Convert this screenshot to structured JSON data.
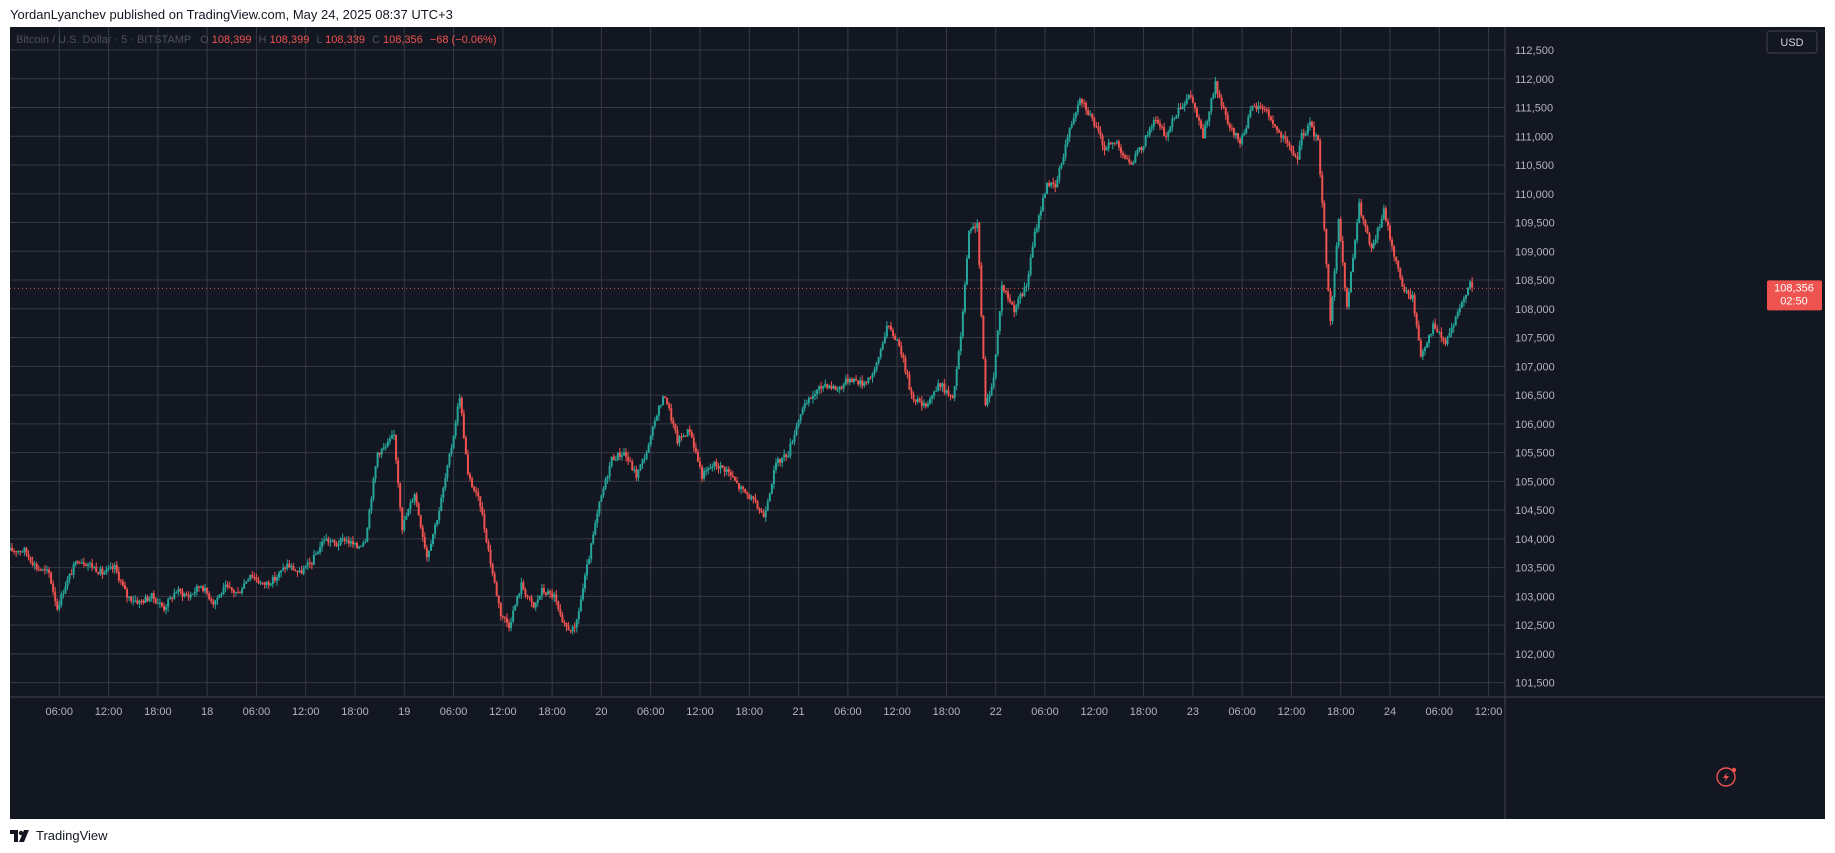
{
  "header": {
    "publisher_line": "YordanLyanchev published on TradingView.com, May 24, 2025 08:37 UTC+3"
  },
  "footer": {
    "brand": "TradingView"
  },
  "legend": {
    "symbol": "Bitcoin / U.S. Dollar · 5 · BITSTAMP",
    "o_label": "O",
    "o_value": "108,399",
    "h_label": "H",
    "h_value": "108,399",
    "l_label": "L",
    "l_value": "108,339",
    "c_label": "C",
    "c_value": "108,356",
    "change": "−68 (−0.06%)"
  },
  "price_axis": {
    "currency": "USD",
    "current_price": "108,356",
    "countdown": "02:50"
  },
  "colors": {
    "background": "#131722",
    "grid": "#363a45",
    "up": "#26a69a",
    "down": "#ef5350",
    "text": "#b2b5be"
  },
  "chart_data": {
    "type": "candlestick",
    "timeframe": "5",
    "ylim": [
      101250,
      112900
    ],
    "y_ticks": [
      101500,
      102000,
      102500,
      103000,
      103500,
      104000,
      104500,
      105000,
      105500,
      106000,
      106500,
      107000,
      107500,
      108000,
      108500,
      109000,
      109500,
      110000,
      110500,
      111000,
      111500,
      112000,
      112500
    ],
    "y_tick_labels": [
      "101,500",
      "102,000",
      "102,500",
      "103,000",
      "103,500",
      "104,000",
      "104,500",
      "105,000",
      "105,500",
      "106,000",
      "106,500",
      "107,000",
      "107,500",
      "108,000",
      "108,500",
      "109,000",
      "109,500",
      "110,000",
      "110,500",
      "111,000",
      "111,500",
      "112,000",
      "112,500"
    ],
    "x_labels": [
      "06:00",
      "12:00",
      "18:00",
      "18",
      "06:00",
      "12:00",
      "18:00",
      "19",
      "06:00",
      "12:00",
      "18:00",
      "20",
      "06:00",
      "12:00",
      "18:00",
      "21",
      "06:00",
      "12:00",
      "18:00",
      "22",
      "06:00",
      "12:00",
      "18:00",
      "23",
      "06:00",
      "12:00",
      "18:00",
      "24",
      "06:00",
      "12:00"
    ],
    "x_range_hours": [
      0,
      180
    ],
    "x_label_hours": [
      6,
      12,
      18,
      24,
      30,
      36,
      42,
      48,
      54,
      60,
      66,
      72,
      78,
      84,
      90,
      96,
      102,
      108,
      114,
      120,
      126,
      132,
      138,
      144,
      150,
      156,
      162,
      168,
      174,
      180
    ],
    "last_price": 108356,
    "price_path_hours": [
      2,
      3.5,
      5,
      6,
      7,
      8.5,
      10,
      11.5,
      13,
      14.5,
      16,
      17.5,
      19,
      20.5,
      22,
      23.5,
      25,
      26.5,
      28,
      29.5,
      31,
      32.5,
      34,
      35.5,
      37,
      38.5,
      40,
      41,
      42.5,
      43.5,
      45,
      46,
      47,
      48,
      49.5,
      51,
      52.5,
      54,
      55,
      56,
      57.5,
      59,
      60,
      61,
      62.5,
      64,
      65,
      66.5,
      67.5,
      69,
      70.5,
      72,
      73.5,
      75,
      76.5,
      78,
      79,
      80,
      81.5,
      83,
      84.5,
      86,
      87.5,
      89,
      90.5,
      92,
      93.5,
      95,
      96.5,
      98,
      99.5,
      101,
      102.5,
      104,
      105.5,
      107,
      108.5,
      110,
      111.5,
      112.5,
      113.5,
      115,
      116,
      117,
      118,
      119,
      120,
      121,
      122.5,
      124,
      125,
      126.5,
      127.5,
      129,
      130.5,
      132,
      133.5,
      135,
      136.5,
      138,
      139.5,
      141,
      142.5,
      144,
      145.5,
      147,
      148.5,
      150,
      151.5,
      153,
      154.5,
      156,
      157,
      157.5,
      158.5,
      159.5,
      161,
      162,
      163,
      164.5,
      166,
      167.5,
      169,
      170,
      171,
      172,
      173.5,
      175,
      176.5,
      178
    ],
    "price_path_values": [
      103800,
      103500,
      103400,
      102800,
      103200,
      103650,
      103550,
      103400,
      103500,
      103000,
      102900,
      103000,
      102800,
      103100,
      103000,
      103200,
      102900,
      103150,
      103050,
      103400,
      103200,
      103300,
      103550,
      103400,
      103600,
      104000,
      103900,
      104000,
      103850,
      104000,
      105500,
      105600,
      105800,
      104200,
      104800,
      103700,
      104500,
      105600,
      106500,
      105100,
      104600,
      103400,
      102700,
      102500,
      103200,
      102800,
      103100,
      103000,
      102500,
      102400,
      103500,
      104600,
      105400,
      105500,
      105100,
      105600,
      106200,
      106500,
      105700,
      105900,
      105100,
      105300,
      105200,
      104900,
      104700,
      104400,
      105300,
      105500,
      106200,
      106500,
      106700,
      106600,
      106800,
      106700,
      106900,
      107700,
      107400,
      106500,
      106300,
      106500,
      106700,
      106400,
      107500,
      109300,
      109500,
      106300,
      106800,
      108400,
      108000,
      108400,
      109300,
      110200,
      110100,
      111000,
      111700,
      111300,
      110800,
      110900,
      110500,
      110800,
      111300,
      111000,
      111500,
      111700,
      111000,
      111900,
      111200,
      110900,
      111500,
      111500,
      111100,
      110800,
      110600,
      111000,
      111200,
      110900,
      107800,
      109500,
      108000,
      109800,
      109000,
      109700,
      108800,
      108300,
      108200,
      107200,
      107700,
      107400,
      107900,
      108500,
      108356
    ]
  }
}
